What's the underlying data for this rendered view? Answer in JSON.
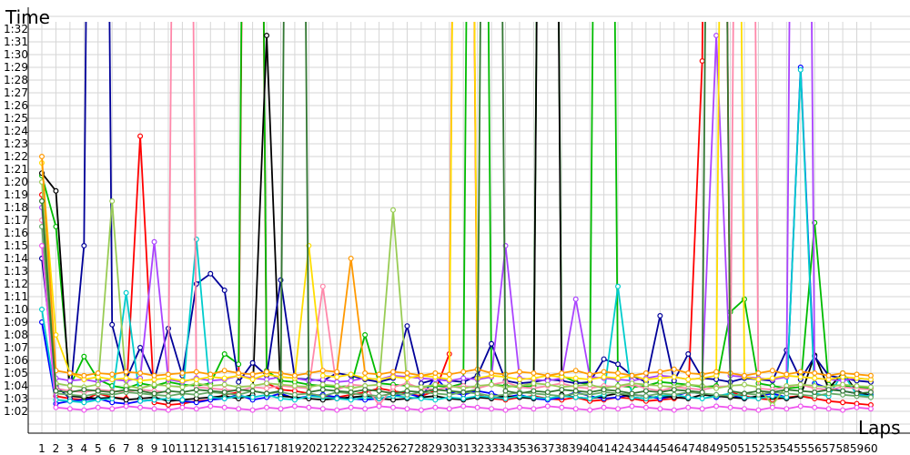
{
  "chart_data": {
    "type": "line",
    "ylabel": "Time",
    "xlabel": "Laps",
    "grid": true,
    "x": [
      1,
      2,
      3,
      4,
      5,
      6,
      7,
      8,
      9,
      10,
      11,
      12,
      13,
      14,
      15,
      16,
      17,
      18,
      19,
      20,
      21,
      22,
      23,
      24,
      25,
      26,
      27,
      28,
      29,
      30,
      31,
      32,
      33,
      34,
      35,
      36,
      37,
      38,
      39,
      40,
      41,
      42,
      43,
      44,
      45,
      46,
      47,
      48,
      49,
      50,
      51,
      52,
      53,
      54,
      55,
      56,
      57,
      58,
      59,
      60
    ],
    "xlim": [
      0,
      62
    ],
    "ylim_seconds": [
      59,
      95
    ],
    "y_ticks": [
      "1:02",
      "1:03",
      "1:04",
      "1:05",
      "1:06",
      "1:07",
      "1:08",
      "1:09",
      "1:10",
      "1:11",
      "1:12",
      "1:13",
      "1:14",
      "1:15",
      "1:16",
      "1:17",
      "1:18",
      "1:19",
      "1:20",
      "1:21",
      "1:22",
      "1:23",
      "1:24",
      "1:25",
      "1:26",
      "1:27",
      "1:28",
      "1:29",
      "1:30",
      "1:31",
      "1:32"
    ],
    "series": [
      {
        "color": "#ff0000",
        "values": [
          79,
          63.2,
          63.0,
          62.9,
          63.4,
          63.1,
          63.0,
          83.6,
          62.7,
          62.5,
          62.6,
          62.8,
          62.9,
          63.3,
          63.5,
          200,
          64.2,
          63.7,
          63.6,
          63.4,
          63.2,
          63.1,
          63.3,
          63.5,
          63.8,
          63.6,
          63.4,
          63.2,
          63.6,
          66.5,
          200,
          63.3,
          63.0,
          62.9,
          63.1,
          63.2,
          63.0,
          62.9,
          63.1,
          62.8,
          62.9,
          63.1,
          63.0,
          62.8,
          62.9,
          63.0,
          63.2,
          89.5,
          200,
          63.5,
          63.2,
          63.0,
          62.9,
          63.1,
          63.2,
          63.0,
          62.8,
          62.7,
          62.6,
          62.5
        ]
      },
      {
        "color": "#0000ff",
        "values": [
          69.0,
          62.6,
          62.8,
          62.9,
          63.0,
          62.7,
          62.6,
          62.8,
          62.9,
          63.0,
          62.8,
          62.7,
          62.9,
          63.0,
          63.3,
          62.9,
          63.1,
          63.4,
          63.0,
          63.2,
          63.3,
          63.1,
          63.0,
          62.9,
          63.0,
          63.2,
          63.4,
          63.1,
          64.7,
          63.5,
          63.3,
          63.6,
          63.4,
          63.1,
          63.3,
          63.0,
          62.9,
          63.1,
          63.5,
          63.2,
          63.0,
          63.1,
          63.3,
          63.2,
          63.0,
          63.2,
          63.5,
          63.4,
          63.1,
          63.3,
          63.0,
          63.2,
          63.4,
          63.1,
          89.0,
          64.2,
          63.8,
          63.6,
          63.4,
          63.3
        ]
      },
      {
        "color": "#00bb00",
        "values": [
          80.5,
          76.5,
          64.0,
          66.3,
          64.5,
          64.0,
          63.8,
          64.2,
          64.0,
          64.3,
          64.1,
          64.0,
          64.2,
          66.5,
          65.7,
          200,
          65.2,
          64.4,
          64.3,
          64.1,
          64.0,
          63.9,
          64.0,
          68.0,
          64.2,
          64.1,
          64.0,
          63.9,
          64.0,
          63.9,
          64.2,
          200,
          64.1,
          64.0,
          63.9,
          64.0,
          200,
          64.8,
          64.3,
          64.1,
          200,
          64.0,
          63.9,
          64.0,
          64.3,
          64.2,
          64.1,
          63.9,
          64.0,
          69.8,
          70.8,
          64.2,
          64.0,
          63.8,
          63.9,
          76.8,
          64.1,
          64.0,
          63.9,
          63.8
        ]
      },
      {
        "color": "#000000",
        "values": [
          80.7,
          79.3,
          63.2,
          63.1,
          63.0,
          63.1,
          62.9,
          63.0,
          63.1,
          62.8,
          62.9,
          63.0,
          63.1,
          63.2,
          63.0,
          63.3,
          91.5,
          63.2,
          63.1,
          63.0,
          62.9,
          63.0,
          63.1,
          63.2,
          63.0,
          62.9,
          63.0,
          63.1,
          63.2,
          63.0,
          62.9,
          63.1,
          63.0,
          63.2,
          63.1,
          63.0,
          200,
          63.3,
          63.1,
          63.0,
          63.2,
          63.4,
          63.1,
          63.0,
          63.2,
          63.1,
          63.0,
          63.3,
          63.2,
          63.1,
          63.0,
          63.2,
          63.1,
          63.0,
          63.2,
          66.4,
          63.8,
          65.0,
          63.6,
          63.2
        ]
      },
      {
        "color": "#000099",
        "values": [
          74.0,
          64.0,
          63.0,
          75.0,
          200,
          68.8,
          64.5,
          67.0,
          64.5,
          68.5,
          64.8,
          72.0,
          72.8,
          71.5,
          64.3,
          65.8,
          64.8,
          72.3,
          64.6,
          64.5,
          64.4,
          65.0,
          64.8,
          64.5,
          64.3,
          64.6,
          68.7,
          64.2,
          64.5,
          64.4,
          64.3,
          64.8,
          67.3,
          64.4,
          64.2,
          64.3,
          64.5,
          64.4,
          64.2,
          64.3,
          66.1,
          65.7,
          64.8,
          64.3,
          69.5,
          64.4,
          66.5,
          64.6,
          64.5,
          64.3,
          64.6,
          64.5,
          64.4,
          66.8,
          64.5,
          66.3,
          64.8,
          64.6,
          64.4,
          64.3
        ]
      },
      {
        "color": "#00cccc",
        "values": [
          70.0,
          62.9,
          62.8,
          62.7,
          62.9,
          63.0,
          71.3,
          62.8,
          62.9,
          63.0,
          62.9,
          75.5,
          63.1,
          63.0,
          63.2,
          63.1,
          63.3,
          63.0,
          62.9,
          63.2,
          63.1,
          63.0,
          62.9,
          63.1,
          63.0,
          63.2,
          63.1,
          63.0,
          62.9,
          63.1,
          63.0,
          63.2,
          63.1,
          63.0,
          63.2,
          63.1,
          63.0,
          63.2,
          63.1,
          63.0,
          63.3,
          71.8,
          63.1,
          63.0,
          63.2,
          63.3,
          63.1,
          63.0,
          63.2,
          63.4,
          63.1,
          63.0,
          63.2,
          63.1,
          88.8,
          63.4,
          63.2,
          65.0,
          63.3,
          63.2
        ]
      },
      {
        "color": "#ff88aa",
        "values": [
          77.0,
          63.8,
          63.6,
          63.5,
          63.7,
          63.6,
          63.5,
          63.7,
          63.6,
          63.5,
          200,
          63.9,
          63.8,
          63.7,
          63.6,
          63.9,
          63.8,
          64.0,
          63.9,
          63.8,
          71.8,
          63.7,
          64.1,
          64.0,
          62.5,
          63.9,
          64.2,
          63.8,
          63.7,
          63.9,
          64.0,
          63.8,
          64.1,
          64.3,
          63.9,
          63.8,
          64.0,
          64.2,
          63.9,
          63.8,
          64.0,
          63.9,
          64.1,
          63.8,
          63.6,
          63.9,
          63.8,
          63.7,
          63.9,
          64.0,
          200,
          63.8,
          63.7,
          63.9,
          64.1,
          63.8,
          63.7,
          63.9,
          63.8,
          63.7
        ]
      },
      {
        "color": "#aa44ff",
        "values": [
          78.0,
          64.6,
          64.4,
          64.5,
          64.3,
          64.5,
          64.4,
          64.6,
          75.3,
          64.5,
          64.3,
          64.6,
          64.4,
          64.5,
          64.8,
          64.6,
          64.5,
          64.7,
          64.6,
          64.4,
          64.5,
          64.3,
          64.4,
          64.6,
          64.5,
          64.8,
          64.7,
          64.6,
          64.5,
          64.4,
          64.6,
          64.5,
          64.7,
          75.0,
          64.6,
          64.5,
          64.4,
          64.6,
          70.8,
          64.7,
          64.6,
          64.5,
          64.4,
          64.6,
          64.8,
          64.7,
          64.5,
          64.6,
          91.5,
          64.8,
          64.7,
          64.6,
          64.5,
          64.7,
          200,
          64.6,
          64.5,
          64.4,
          64.6,
          64.5
        ]
      },
      {
        "color": "#99cc55",
        "values": [
          80.0,
          64.2,
          64.0,
          63.9,
          64.1,
          78.5,
          64.0,
          63.8,
          64.1,
          64.0,
          63.9,
          64.2,
          64.0,
          64.1,
          63.9,
          64.0,
          64.2,
          64.1,
          64.0,
          63.9,
          64.1,
          64.0,
          63.8,
          64.0,
          64.1,
          77.8,
          64.0,
          63.9,
          64.1,
          64.0,
          63.8,
          64.0,
          64.1,
          63.9,
          64.0,
          64.2,
          64.1,
          63.9,
          64.0,
          64.1,
          63.8,
          64.0,
          64.2,
          64.1,
          64.0,
          63.9,
          64.1,
          64.0,
          63.8,
          64.0,
          64.1,
          63.9,
          62.5,
          64.0,
          64.1,
          64.0,
          63.9,
          64.1,
          64.0,
          63.9
        ]
      },
      {
        "color": "#ffdd00",
        "values": [
          81.5,
          68.0,
          65.0,
          64.5,
          64.7,
          64.5,
          64.6,
          64.4,
          64.5,
          64.6,
          64.4,
          64.5,
          64.7,
          64.6,
          64.8,
          64.5,
          64.9,
          64.7,
          64.6,
          75.0,
          64.8,
          64.7,
          64.9,
          64.6,
          64.5,
          64.7,
          64.6,
          64.8,
          64.7,
          64.5,
          200,
          64.6,
          64.8,
          64.7,
          64.5,
          64.6,
          64.8,
          64.7,
          64.6,
          64.5,
          64.7,
          64.6,
          64.8,
          64.5,
          64.6,
          64.7,
          64.5,
          64.6,
          64.8,
          200,
          64.7,
          64.5,
          64.6,
          64.8,
          64.7,
          64.6,
          64.5,
          64.7,
          64.6,
          64.5
        ]
      },
      {
        "color": "#ff9900",
        "values": [
          82.0,
          65.2,
          65.0,
          64.8,
          65.0,
          64.9,
          65.1,
          65.0,
          64.8,
          64.9,
          65.0,
          65.1,
          64.9,
          65.2,
          65.0,
          64.9,
          65.1,
          65.0,
          64.8,
          65.0,
          65.2,
          65.1,
          74.0,
          65.0,
          64.9,
          65.1,
          65.0,
          64.8,
          65.0,
          64.9,
          65.1,
          65.3,
          65.0,
          64.9,
          65.1,
          65.0,
          64.8,
          65.0,
          65.2,
          64.9,
          65.1,
          65.0,
          64.8,
          65.0,
          65.1,
          65.3,
          65.0,
          64.9,
          65.1,
          65.0,
          64.8,
          65.0,
          65.2,
          64.9,
          65.1,
          65.0,
          64.8,
          65.0,
          64.9,
          64.8
        ]
      },
      {
        "color": "#66aa66",
        "values": [
          76.5,
          63.4,
          63.3,
          63.2,
          63.4,
          63.3,
          63.5,
          63.4,
          63.3,
          63.2,
          63.4,
          63.3,
          63.5,
          63.4,
          63.3,
          63.6,
          63.4,
          63.5,
          63.3,
          63.4,
          63.2,
          63.5,
          63.4,
          63.3,
          63.2,
          63.4,
          63.3,
          63.5,
          63.4,
          63.3,
          63.5,
          63.4,
          63.2,
          63.3,
          63.5,
          63.4,
          63.3,
          63.2,
          63.4,
          63.3,
          63.5,
          63.4,
          63.3,
          63.2,
          63.4,
          63.3,
          63.5,
          63.4,
          63.3,
          63.2,
          63.4,
          63.3,
          63.5,
          63.4,
          63.3,
          63.2,
          63.4,
          63.3,
          63.2,
          63.1
        ]
      },
      {
        "color": "#ee55ee",
        "values": [
          75.0,
          62.3,
          62.2,
          62.1,
          62.3,
          62.2,
          62.4,
          62.3,
          62.2,
          62.1,
          62.3,
          62.2,
          62.4,
          62.3,
          62.2,
          62.1,
          62.3,
          62.2,
          62.4,
          62.3,
          62.2,
          62.1,
          62.3,
          62.2,
          62.4,
          62.3,
          62.2,
          62.1,
          62.3,
          62.2,
          62.4,
          62.3,
          62.2,
          62.1,
          62.3,
          62.2,
          62.4,
          62.3,
          62.2,
          62.1,
          62.3,
          62.2,
          62.4,
          62.3,
          62.2,
          62.1,
          62.3,
          62.2,
          62.4,
          62.3,
          62.2,
          62.1,
          62.3,
          62.2,
          62.4,
          62.3,
          62.2,
          62.1,
          62.3,
          62.2
        ]
      },
      {
        "color": "#337733",
        "values": [
          78.5,
          63.6,
          63.5,
          63.7,
          63.6,
          63.5,
          63.7,
          63.6,
          63.4,
          63.6,
          63.5,
          63.7,
          63.6,
          63.5,
          63.7,
          63.6,
          63.4,
          63.6,
          200,
          63.5,
          63.7,
          63.6,
          63.5,
          63.7,
          63.6,
          63.4,
          63.6,
          63.5,
          63.7,
          63.6,
          63.5,
          63.7,
          200,
          63.6,
          63.4,
          63.6,
          63.5,
          63.7,
          63.6,
          63.5,
          63.7,
          63.6,
          63.4,
          63.6,
          63.5,
          63.7,
          63.6,
          63.5,
          200,
          63.6,
          63.4,
          63.6,
          63.5,
          63.7,
          63.6,
          63.5,
          63.7,
          63.6,
          63.4,
          63.5
        ]
      }
    ]
  }
}
